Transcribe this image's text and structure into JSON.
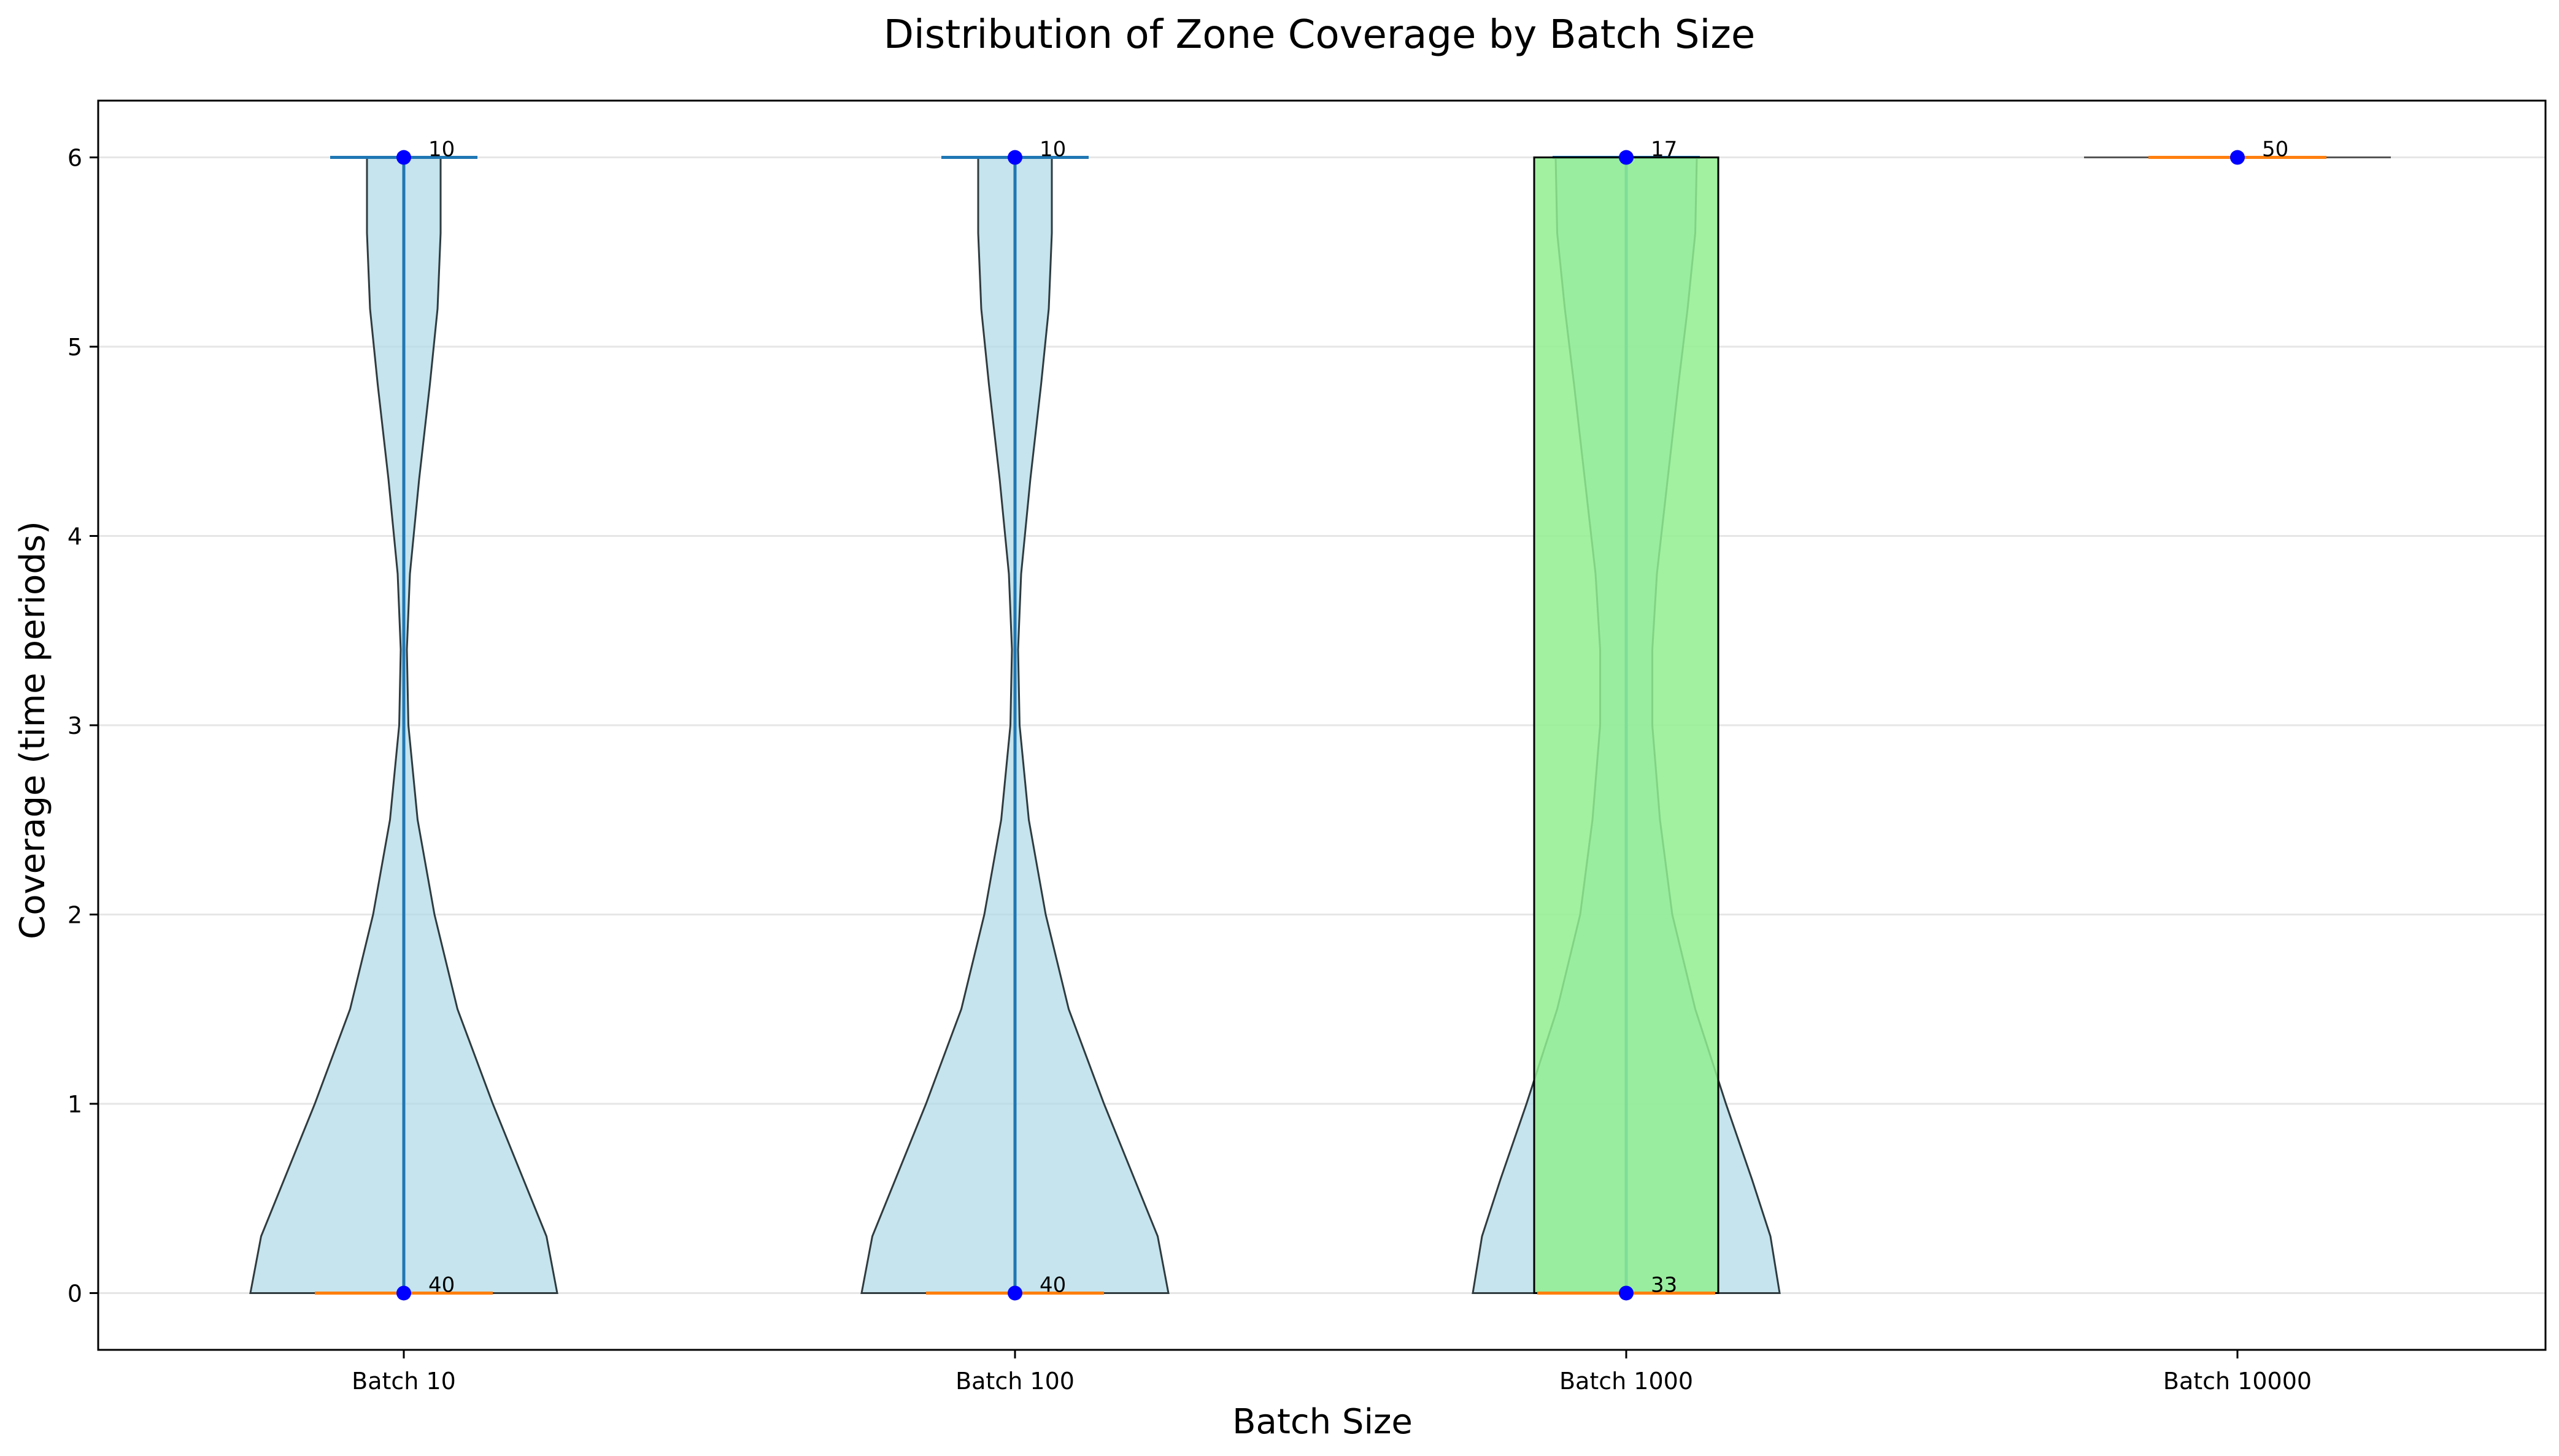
{
  "chart_data": {
    "type": "violin",
    "title": "Distribution of Zone Coverage by Batch Size",
    "xlabel": "Batch Size",
    "ylabel": "Coverage (time periods)",
    "ylim": [
      -0.3,
      6.3
    ],
    "yticks": [
      "0",
      "1",
      "2",
      "3",
      "4",
      "5",
      "6"
    ],
    "grid": "horizontal",
    "categories": [
      "Batch 10",
      "Batch 100",
      "Batch 1000",
      "Batch 10000"
    ],
    "colors": {
      "violin_fill": "#add8e6",
      "violin_edge": "#2f3b3f",
      "box_fill": "#90ee90",
      "whisker": "#1f77b4",
      "median": "#ff7f0e",
      "point": "#0000ff",
      "grid": "#e6e6e6"
    },
    "groups": [
      {
        "label": "Batch 10",
        "values": [
          {
            "y": 0,
            "count": "40"
          },
          {
            "y": 6,
            "count": "10"
          }
        ],
        "violin_halfwidth": [
          [
            0,
            1.0
          ],
          [
            0.3,
            0.93
          ],
          [
            0.6,
            0.78
          ],
          [
            1.0,
            0.58
          ],
          [
            1.5,
            0.35
          ],
          [
            2.0,
            0.2
          ],
          [
            2.5,
            0.09
          ],
          [
            3.0,
            0.03
          ],
          [
            3.4,
            0.02
          ],
          [
            3.8,
            0.04
          ],
          [
            4.3,
            0.1
          ],
          [
            4.8,
            0.17
          ],
          [
            5.2,
            0.22
          ],
          [
            5.6,
            0.24
          ],
          [
            6.0,
            0.24
          ]
        ],
        "box": {
          "q1": 0,
          "median": 0,
          "q3": 0,
          "whisker_low": 0,
          "whisker_high": 6
        }
      },
      {
        "label": "Batch 100",
        "values": [
          {
            "y": 0,
            "count": "40"
          },
          {
            "y": 6,
            "count": "10"
          }
        ],
        "violin_halfwidth": [
          [
            0,
            1.0
          ],
          [
            0.3,
            0.93
          ],
          [
            0.6,
            0.78
          ],
          [
            1.0,
            0.58
          ],
          [
            1.5,
            0.35
          ],
          [
            2.0,
            0.2
          ],
          [
            2.5,
            0.09
          ],
          [
            3.0,
            0.03
          ],
          [
            3.4,
            0.02
          ],
          [
            3.8,
            0.04
          ],
          [
            4.3,
            0.1
          ],
          [
            4.8,
            0.17
          ],
          [
            5.2,
            0.22
          ],
          [
            5.6,
            0.24
          ],
          [
            6.0,
            0.24
          ]
        ],
        "box": {
          "q1": 0,
          "median": 0,
          "q3": 0,
          "whisker_low": 0,
          "whisker_high": 6
        }
      },
      {
        "label": "Batch 1000",
        "values": [
          {
            "y": 0,
            "count": "33"
          },
          {
            "y": 6,
            "count": "17"
          }
        ],
        "violin_halfwidth": [
          [
            0,
            1.0
          ],
          [
            0.3,
            0.94
          ],
          [
            0.6,
            0.82
          ],
          [
            1.0,
            0.65
          ],
          [
            1.5,
            0.45
          ],
          [
            2.0,
            0.3
          ],
          [
            2.5,
            0.22
          ],
          [
            3.0,
            0.17
          ],
          [
            3.4,
            0.17
          ],
          [
            3.8,
            0.2
          ],
          [
            4.3,
            0.27
          ],
          [
            4.8,
            0.34
          ],
          [
            5.2,
            0.4
          ],
          [
            5.6,
            0.45
          ],
          [
            6.0,
            0.46
          ]
        ],
        "box": {
          "q1": 0,
          "median": 0,
          "q3": 6,
          "whisker_low": 0,
          "whisker_high": 6
        }
      },
      {
        "label": "Batch 10000",
        "values": [
          {
            "y": 6,
            "count": "50"
          }
        ],
        "violin_halfwidth": [],
        "box": {
          "q1": 6,
          "median": 6,
          "q3": 6,
          "whisker_low": 6,
          "whisker_high": 6
        }
      }
    ]
  }
}
